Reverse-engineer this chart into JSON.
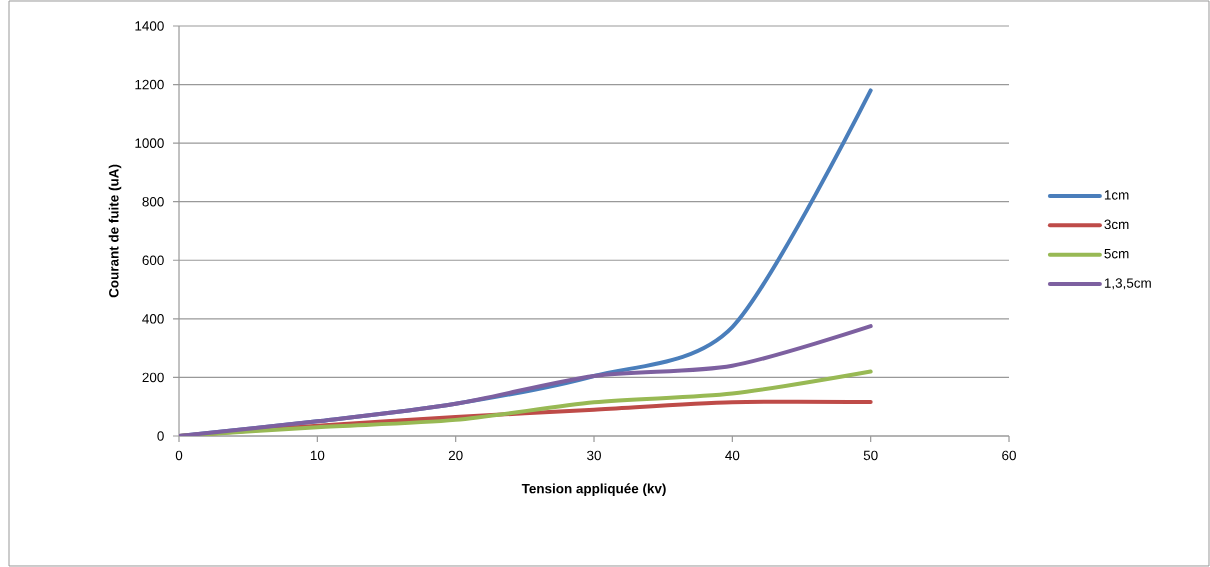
{
  "chart_data": {
    "type": "line",
    "xlabel": "Tension appliquée (kv)",
    "ylabel": "Courant de fuite (uA)",
    "x": [
      0,
      10,
      20,
      30,
      40,
      50
    ],
    "series": [
      {
        "name": "1cm",
        "color": "#4a7ebb",
        "values": [
          0,
          50,
          110,
          205,
          372,
          1180
        ]
      },
      {
        "name": "3cm",
        "color": "#be4b48",
        "values": [
          0,
          35,
          65,
          90,
          115,
          116
        ]
      },
      {
        "name": "5cm",
        "color": "#98b954",
        "values": [
          0,
          30,
          55,
          115,
          145,
          220
        ]
      },
      {
        "name": "1,3,5cm",
        "color": "#7d60a0",
        "values": [
          0,
          50,
          110,
          205,
          240,
          375
        ]
      }
    ],
    "xlim": [
      0,
      60
    ],
    "ylim": [
      0,
      1400
    ],
    "xticks": [
      0,
      10,
      20,
      30,
      40,
      50,
      60
    ],
    "yticks": [
      0,
      200,
      400,
      600,
      800,
      1000,
      1200,
      1400
    ],
    "grid": "y",
    "legend": "right",
    "line_style": "solid"
  }
}
